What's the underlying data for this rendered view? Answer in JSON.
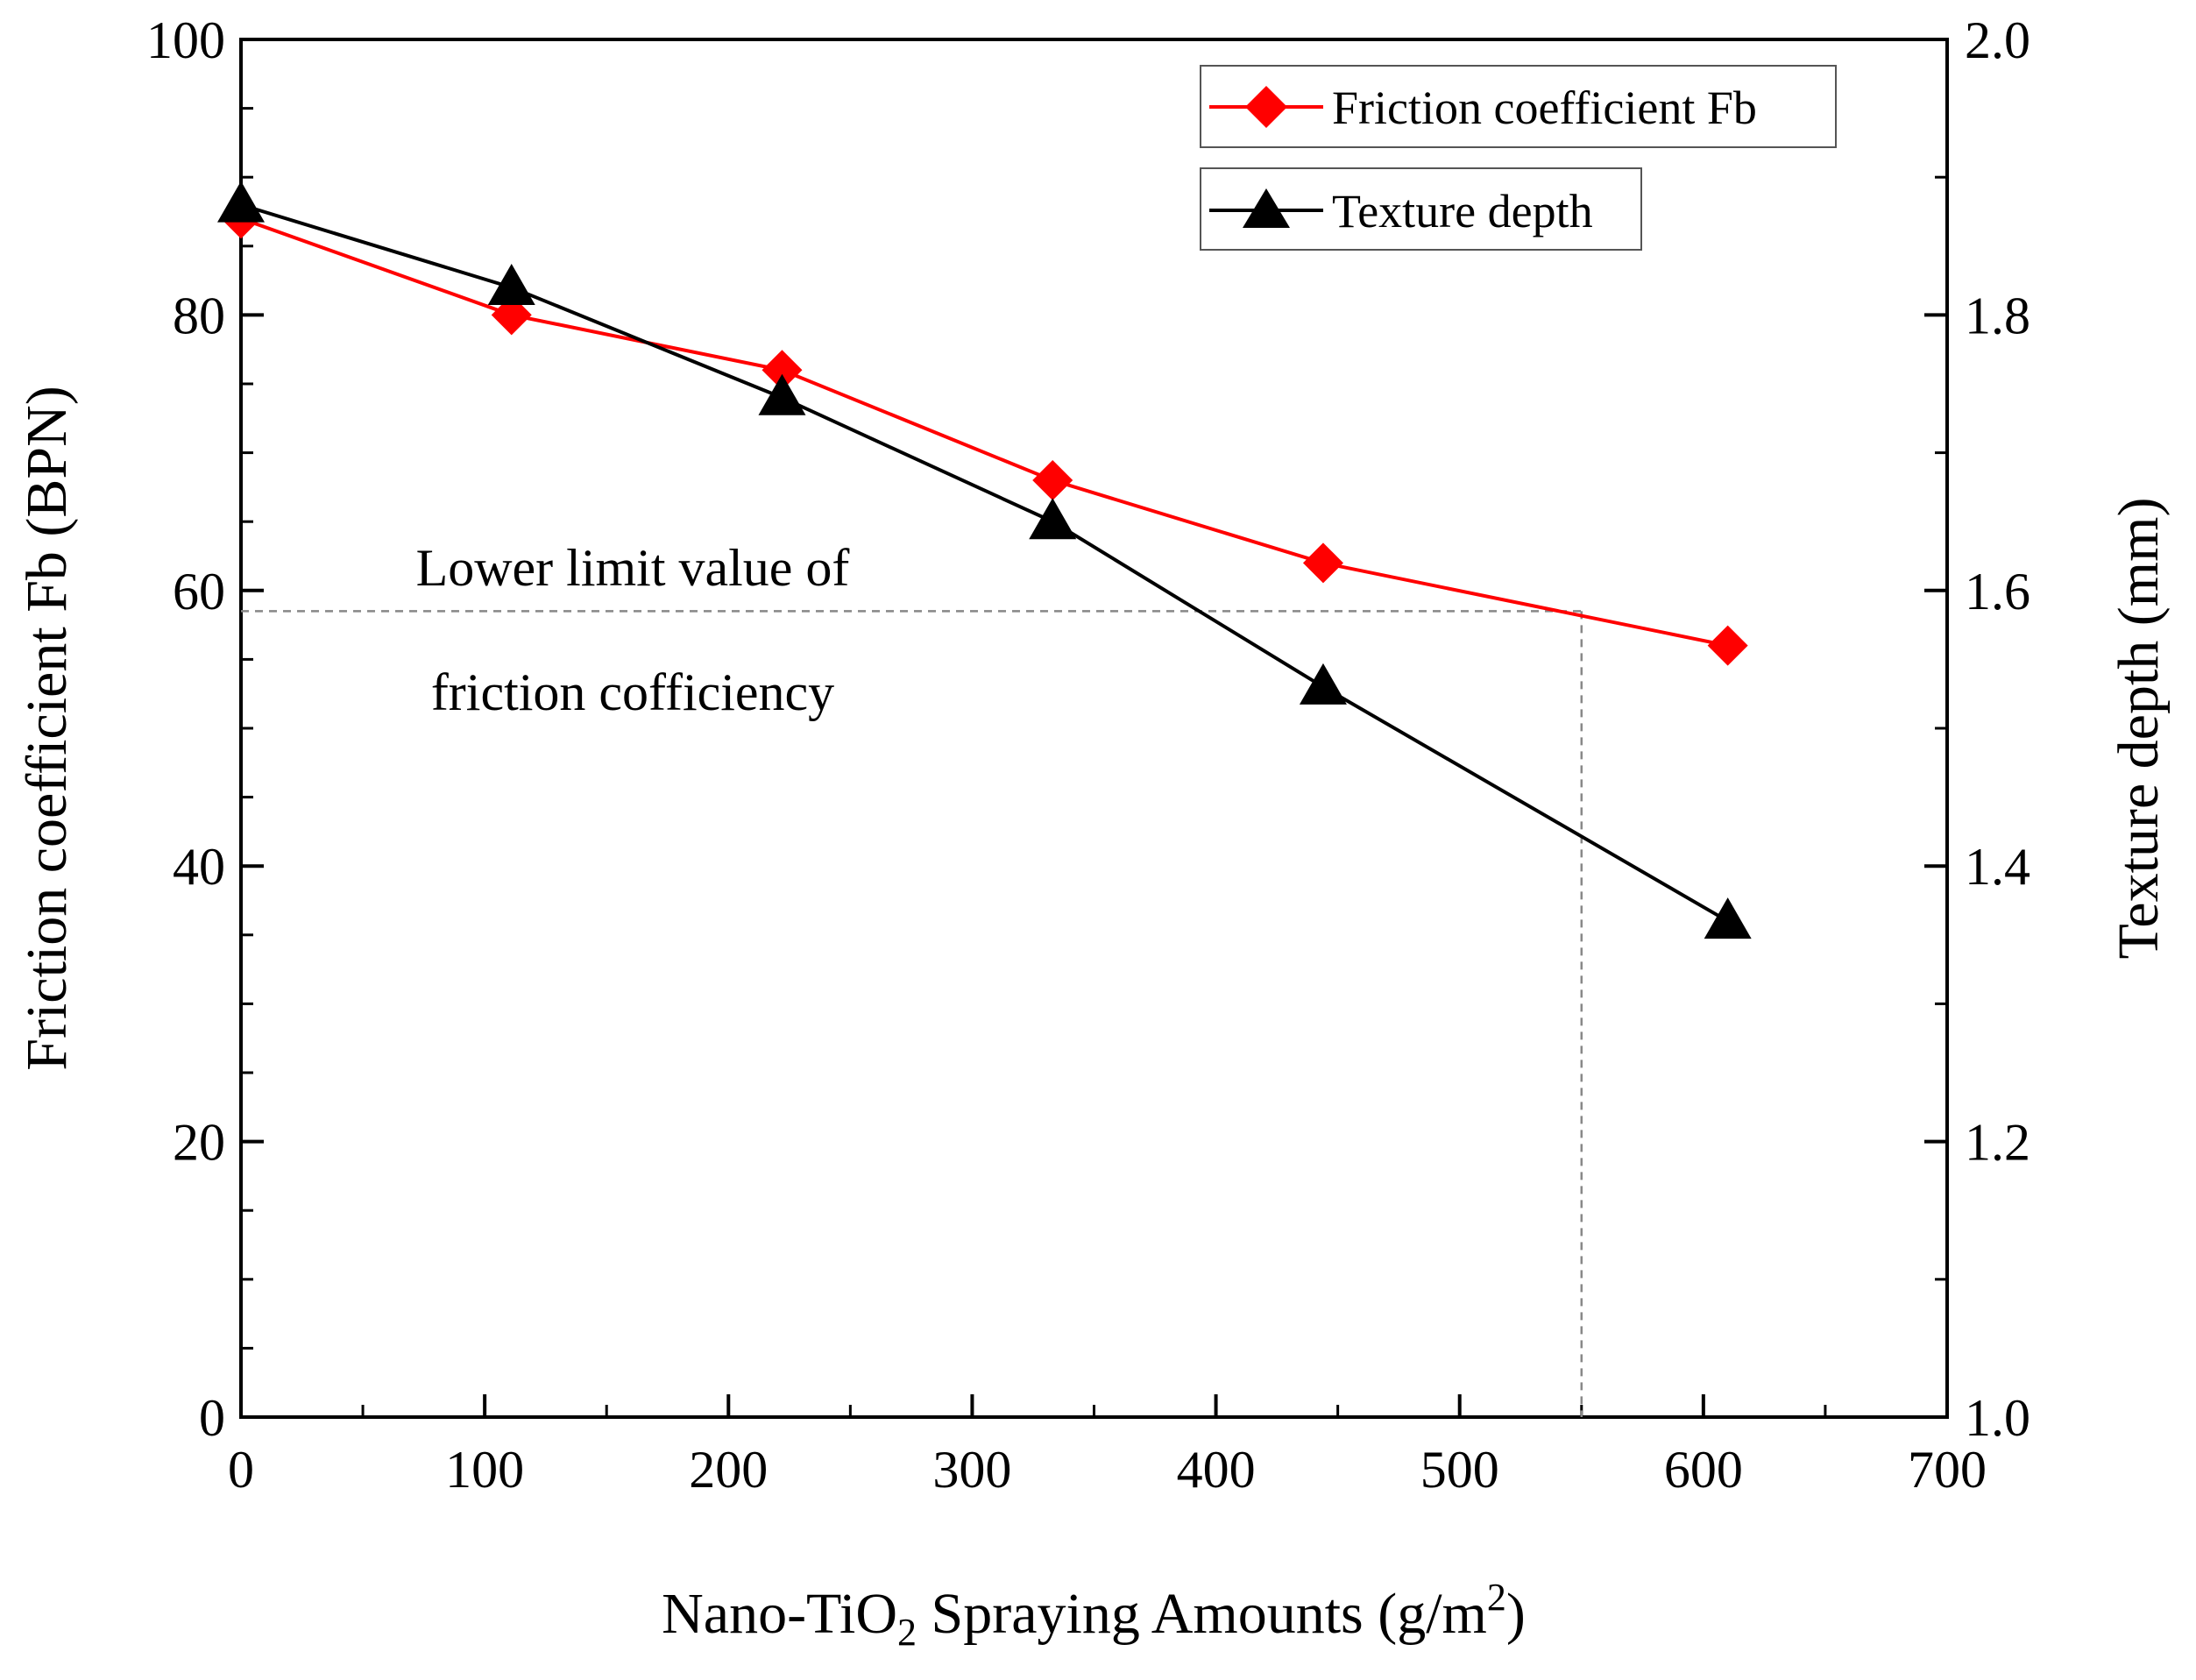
{
  "chart_data": {
    "type": "line",
    "x": [
      0,
      111,
      222,
      333,
      444,
      610
    ],
    "series": [
      {
        "name": "Friction coefficient Fb",
        "axis": "left",
        "color": "#ff0000",
        "marker": "diamond",
        "values": [
          87,
          80,
          76,
          68,
          62,
          56
        ]
      },
      {
        "name": "Texture depth",
        "axis": "right",
        "color": "#000000",
        "marker": "triangle",
        "values": [
          1.88,
          1.82,
          1.74,
          1.65,
          1.53,
          1.36
        ]
      }
    ],
    "xlim": [
      0,
      700
    ],
    "ylim_left": [
      0,
      100
    ],
    "ylim_right": [
      1.0,
      2.0
    ],
    "x_ticks": [
      "0",
      "100",
      "200",
      "300",
      "400",
      "500",
      "600",
      "700"
    ],
    "y_left_ticks": [
      "0",
      "20",
      "40",
      "60",
      "80",
      "100"
    ],
    "y_right_ticks": [
      "1.0",
      "1.2",
      "1.4",
      "1.6",
      "1.8",
      "2.0"
    ],
    "xlabel_prefix": "Nano-TiO",
    "xlabel_sub": "2",
    "xlabel_middle": " Spraying Amounts (g/m",
    "xlabel_sup": "2",
    "xlabel_suffix": ")",
    "ylabel_left": "Friction coefficient Fb (BPN)",
    "ylabel_right": "Texture depth (mm)",
    "reference_line": {
      "y": 58.5,
      "x": 550
    },
    "annotation_line1": "Lower limit value of",
    "annotation_line2": "friction cofficiency",
    "legend_position": "top-right",
    "grid": false
  }
}
